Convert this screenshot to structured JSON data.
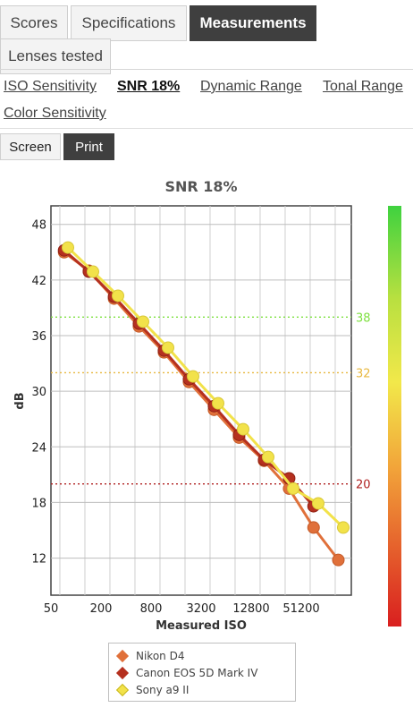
{
  "tabs": [
    {
      "label": "Scores",
      "active": false
    },
    {
      "label": "Specifications",
      "active": false
    },
    {
      "label": "Measurements",
      "active": true
    },
    {
      "label": "Lenses tested",
      "active": false
    }
  ],
  "subnav": [
    {
      "label": "ISO Sensitivity",
      "active": false
    },
    {
      "label": "SNR 18%",
      "active": true
    },
    {
      "label": "Dynamic Range",
      "active": false
    },
    {
      "label": "Tonal Range",
      "active": false
    },
    {
      "label": "Color Sensitivity",
      "active": false
    }
  ],
  "view_modes": [
    {
      "label": "Screen",
      "active": false
    },
    {
      "label": "Print",
      "active": true
    }
  ],
  "colors": {
    "nikon": "#e0703a",
    "canon": "#b5301f",
    "sony": "#f2e24a",
    "tab_active": "#3f3f3f"
  },
  "chart_data": {
    "type": "line",
    "title": "SNR 18%",
    "xlabel": "Measured ISO",
    "ylabel": "dB",
    "x_scale": "log2",
    "x_ticks": [
      "50",
      "200",
      "800",
      "3200",
      "12800",
      "51200"
    ],
    "x_tick_values": [
      50,
      200,
      800,
      3200,
      12800,
      51200
    ],
    "y_ticks": [
      "12",
      "18",
      "24",
      "30",
      "36",
      "42",
      "48"
    ],
    "ylim": [
      8,
      50
    ],
    "xlim": [
      50,
      204800
    ],
    "grid": true,
    "legend": "bottom",
    "thresholds": [
      {
        "label": "38",
        "value": 38,
        "color": "#7ee040"
      },
      {
        "label": "32",
        "value": 32,
        "color": "#e8b840"
      },
      {
        "label": "20",
        "value": 20,
        "color": "#b02020"
      }
    ],
    "series": [
      {
        "name": "Nikon D4",
        "x": [
          72,
          143,
          287,
          572,
          1143,
          2288,
          4575,
          9153,
          18299,
          36596,
          72000,
          143000
        ],
        "y": [
          45.0,
          43.0,
          40.0,
          37.0,
          34.2,
          31.0,
          28.0,
          25.0,
          22.5,
          19.5,
          15.3,
          11.8
        ]
      },
      {
        "name": "Canon EOS 5D Mark IV",
        "x": [
          72,
          143,
          287,
          572,
          1143,
          2288,
          4575,
          9153,
          18299,
          36596,
          72000
        ],
        "y": [
          45.2,
          42.9,
          40.2,
          37.3,
          34.4,
          31.3,
          28.4,
          25.3,
          22.6,
          20.6,
          17.6
        ]
      },
      {
        "name": "Sony a9 II",
        "x": [
          80,
          160,
          320,
          640,
          1280,
          2560,
          5120,
          10240,
          20480,
          40960,
          81920,
          163840
        ],
        "y": [
          45.5,
          42.9,
          40.3,
          37.5,
          34.7,
          31.6,
          28.7,
          25.9,
          22.9,
          19.5,
          17.9,
          15.3
        ]
      }
    ]
  }
}
